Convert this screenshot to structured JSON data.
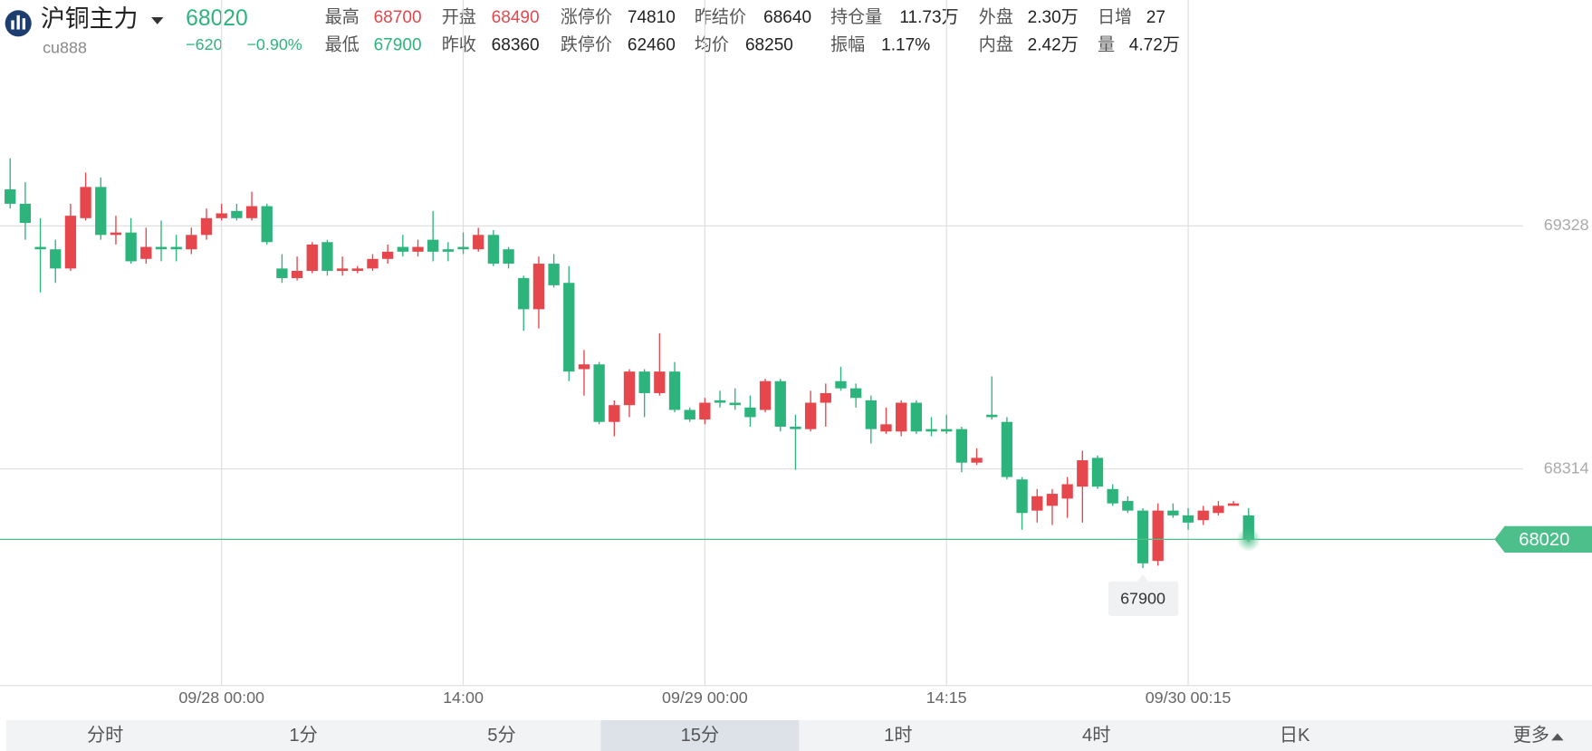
{
  "header": {
    "name": "沪铜主力",
    "code": "cu888",
    "price": 68020,
    "change": "−620",
    "change_pct": "−0.90%",
    "color": "#2db47c",
    "stats": [
      [
        {
          "label": "最高",
          "value": 68700,
          "color": "#e5474d"
        },
        {
          "label": "开盘",
          "value": 68490,
          "color": "#e5474d"
        },
        {
          "label": "涨停价",
          "value": 74810
        },
        {
          "label": "昨结价",
          "value": 68640
        },
        {
          "label": "持仓量",
          "value": "11.73万"
        },
        {
          "label": "外盘",
          "value": "2.30万"
        },
        {
          "label": "日增",
          "value": 27
        }
      ],
      [
        {
          "label": "最低",
          "value": 67900,
          "color": "#2db47c"
        },
        {
          "label": "昨收",
          "value": 68360
        },
        {
          "label": "跌停价",
          "value": 62460
        },
        {
          "label": "均价",
          "value": 68250
        },
        {
          "label": "振幅",
          "value": "1.17%"
        },
        {
          "label": "内盘",
          "value": "2.42万"
        },
        {
          "label": "量",
          "value": "4.72万"
        }
      ]
    ]
  },
  "chart_data": {
    "type": "candlestick",
    "up_color": "#e5474d",
    "down_color": "#2db47c",
    "last_color": "#4cbf8a",
    "categories": [
      null,
      null,
      null,
      null,
      null,
      null,
      null,
      null,
      null,
      null,
      null,
      null,
      null,
      null,
      "09/28 00:00",
      null,
      null,
      null,
      null,
      null,
      null,
      null,
      null,
      null,
      null,
      null,
      null,
      null,
      null,
      null,
      "14:00",
      null,
      null,
      null,
      null,
      null,
      null,
      null,
      null,
      null,
      null,
      null,
      null,
      null,
      null,
      null,
      "09/29 00:00",
      null,
      null,
      null,
      null,
      null,
      null,
      null,
      null,
      null,
      null,
      null,
      null,
      null,
      null,
      null,
      "14:15",
      null,
      null,
      null,
      null,
      null,
      null,
      null,
      null,
      null,
      null,
      null,
      null,
      null,
      null,
      null,
      "09/30 00:15",
      null,
      null,
      null,
      null
    ],
    "open": [
      69480,
      69420,
      69240,
      69230,
      69150,
      69360,
      69490,
      69290,
      69300,
      69190,
      69240,
      69240,
      69230,
      69290,
      69360,
      69390,
      69360,
      69410,
      69150,
      69110,
      69140,
      69260,
      69140,
      69140,
      69150,
      69190,
      69240,
      69220,
      69270,
      69230,
      69240,
      69230,
      69290,
      69230,
      69110,
      68980,
      69170,
      69090,
      68730,
      68750,
      68510,
      68580,
      68720,
      68630,
      68720,
      68560,
      68520,
      68600,
      68590,
      68570,
      68560,
      68680,
      68490,
      68480,
      68590,
      68680,
      68650,
      68600,
      68470,
      68470,
      68590,
      68480,
      68480,
      68480,
      68340,
      68540,
      68510,
      68270,
      68140,
      68160,
      68190,
      68240,
      68360,
      68230,
      68180,
      68140,
      67930,
      68140,
      68120,
      68100,
      68130,
      68160,
      68120
    ],
    "high": [
      69610,
      69510,
      69360,
      69270,
      69420,
      69550,
      69530,
      69370,
      69360,
      69320,
      69350,
      69290,
      69320,
      69400,
      69420,
      69420,
      69470,
      69420,
      69210,
      69200,
      69260,
      69270,
      69200,
      69160,
      69210,
      69250,
      69290,
      69270,
      69390,
      69260,
      69300,
      69320,
      69310,
      69240,
      69120,
      69200,
      69210,
      69160,
      68810,
      68760,
      68600,
      68730,
      68730,
      68880,
      68760,
      68570,
      68610,
      68640,
      68650,
      68620,
      68690,
      68690,
      68540,
      68640,
      68670,
      68740,
      68670,
      68620,
      68570,
      68600,
      68600,
      68530,
      68540,
      68490,
      68400,
      68700,
      68530,
      68280,
      68230,
      68230,
      68280,
      68390,
      68370,
      68250,
      68200,
      68150,
      68170,
      68170,
      68150,
      68160,
      68180,
      68180,
      68150
    ],
    "low": [
      69400,
      69270,
      69050,
      69090,
      69140,
      69350,
      69270,
      69250,
      69170,
      69170,
      69180,
      69180,
      69210,
      69270,
      69350,
      69350,
      69350,
      69250,
      69090,
      69100,
      69130,
      69120,
      69120,
      69130,
      69140,
      69170,
      69200,
      69200,
      69180,
      69180,
      69210,
      69220,
      69160,
      69150,
      68890,
      68900,
      69070,
      68680,
      68620,
      68500,
      68450,
      68530,
      68530,
      68620,
      68550,
      68510,
      68500,
      68570,
      68560,
      68490,
      68550,
      68470,
      68310,
      68470,
      68490,
      68640,
      68570,
      68420,
      68460,
      68450,
      68460,
      68450,
      68460,
      68300,
      68330,
      68520,
      68270,
      68060,
      68090,
      68080,
      68110,
      68090,
      68230,
      68160,
      68130,
      67900,
      67910,
      68110,
      68060,
      68080,
      68120,
      68160,
      68010
    ],
    "close": [
      69420,
      69340,
      69230,
      69150,
      69370,
      69490,
      69290,
      69300,
      69180,
      69240,
      69230,
      69230,
      69290,
      69360,
      69380,
      69360,
      69410,
      69260,
      69110,
      69140,
      69250,
      69140,
      69150,
      69150,
      69190,
      69220,
      69220,
      69240,
      69220,
      69220,
      69230,
      69290,
      69170,
      69170,
      68980,
      69170,
      69080,
      68720,
      68750,
      68510,
      68580,
      68720,
      68630,
      68720,
      68560,
      68520,
      68590,
      68590,
      68580,
      68530,
      68680,
      68490,
      68480,
      68590,
      68630,
      68650,
      68610,
      68480,
      68500,
      68590,
      68470,
      68470,
      68470,
      68340,
      68360,
      68530,
      68280,
      68130,
      68200,
      68210,
      68250,
      68350,
      68240,
      68170,
      68140,
      67920,
      68140,
      68120,
      68090,
      68140,
      68160,
      68170,
      68020
    ],
    "ylim": [
      67410,
      70270
    ],
    "yticks": [
      68314,
      69328
    ],
    "grid": true
  },
  "tabs": [
    {
      "label": "分时"
    },
    {
      "label": "1分"
    },
    {
      "label": "5分"
    },
    {
      "label": "15分",
      "selected": true
    },
    {
      "label": "1时"
    },
    {
      "label": "4时"
    },
    {
      "label": "日K"
    },
    {
      "label": "更多"
    }
  ]
}
